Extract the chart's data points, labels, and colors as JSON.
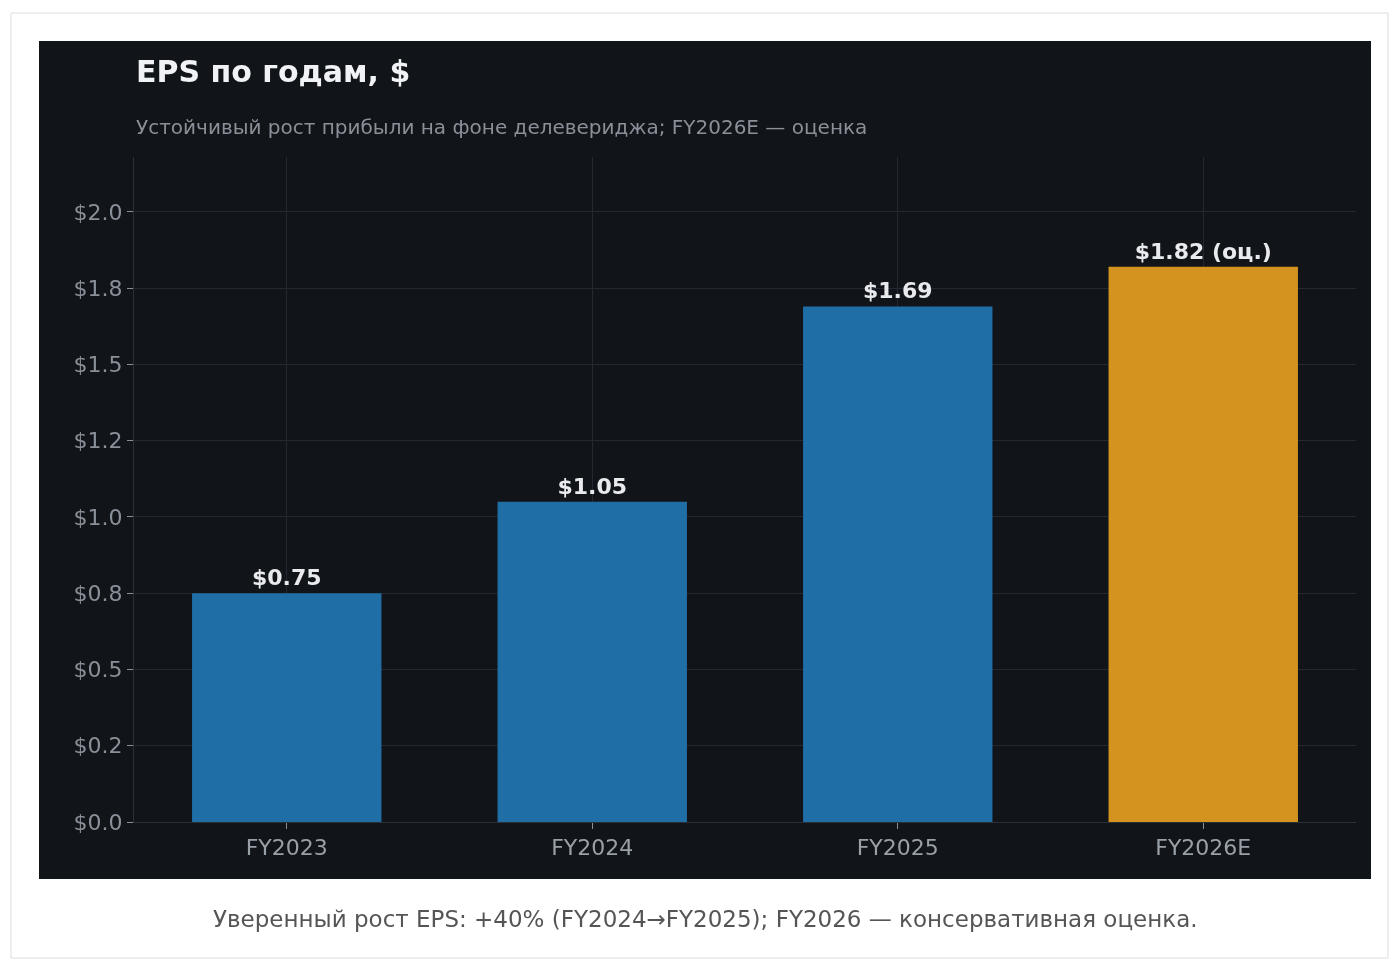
{
  "chart_data": {
    "type": "bar",
    "title": "EPS по годам, $",
    "subtitle": "Устойчивый рост прибыли на фоне делевериджа; FY2026E — оценка",
    "categories": [
      "FY2023",
      "FY2024",
      "FY2025",
      "FY2026E"
    ],
    "values": [
      0.75,
      1.05,
      1.69,
      1.82
    ],
    "colors": [
      "#1f6ea6",
      "#1f6ea6",
      "#1f6ea6",
      "#d4931f"
    ],
    "value_labels": [
      "$0.75",
      "$1.05",
      "$1.69",
      "$1.82 (оц.)"
    ],
    "ylim": [
      0,
      2.18
    ],
    "yticks": [
      {
        "value": 0,
        "label": "$0.0"
      },
      {
        "value": 0.25,
        "label": "$0.2"
      },
      {
        "value": 0.5,
        "label": "$0.5"
      },
      {
        "value": 0.75,
        "label": "$0.8"
      },
      {
        "value": 1.0,
        "label": "$1.0"
      },
      {
        "value": 1.25,
        "label": "$1.2"
      },
      {
        "value": 1.5,
        "label": "$1.5"
      },
      {
        "value": 1.75,
        "label": "$1.8"
      },
      {
        "value": 2.0,
        "label": "$2.0"
      }
    ],
    "grid": true,
    "annotations": [
      "Уверенный рост EPS: +40% (FY2024→FY2025); FY2026 — консервативная оценка."
    ]
  }
}
